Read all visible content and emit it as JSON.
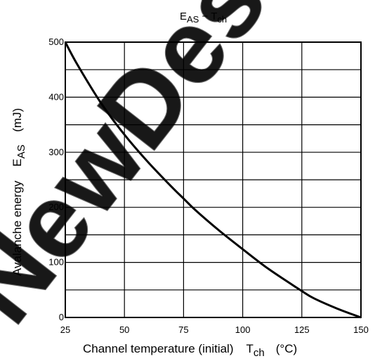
{
  "chart_data": {
    "type": "line",
    "title_main": "E",
    "title_main_sub": "AS",
    "title_sep": " − ",
    "title_var": "T",
    "title_var_sub": "ch",
    "xlabel": "Channel temperature (initial)",
    "xlabel_var": "T",
    "xlabel_var_sub": "ch",
    "xlabel_unit": "(°C)",
    "ylabel": "Avalanche energy",
    "ylabel_var": "E",
    "ylabel_var_sub": "AS",
    "ylabel_unit": "(mJ)",
    "xlim": [
      25,
      150
    ],
    "ylim": [
      0,
      500
    ],
    "xticks": [
      25,
      50,
      75,
      100,
      125,
      150
    ],
    "yticks": [
      0,
      100,
      200,
      300,
      400,
      500
    ],
    "grid": true,
    "watermark": "NewDes",
    "series": [
      {
        "x": [
          25,
          30,
          40,
          50,
          60,
          70,
          75,
          80,
          90,
          100,
          110,
          120,
          125,
          130,
          140,
          150
        ],
        "values": [
          500,
          460,
          390,
          332,
          282,
          237,
          216,
          195,
          158,
          124,
          91,
          62,
          48,
          35,
          16,
          0
        ]
      }
    ]
  }
}
